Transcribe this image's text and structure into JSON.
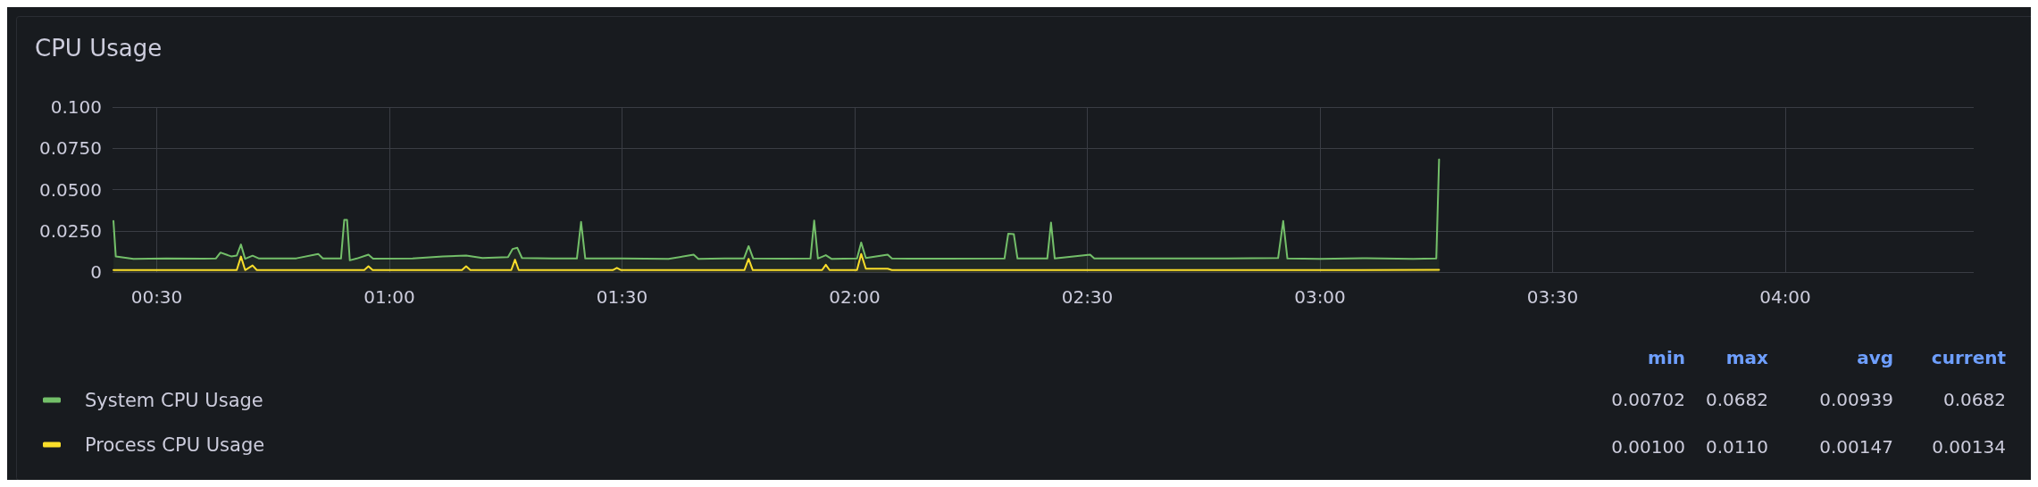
{
  "chart_data": {
    "type": "area",
    "title": "CPU Usage",
    "xlim": [
      0.405,
      4.405
    ],
    "xticks": [
      {
        "value": 0.5,
        "label": "00:30"
      },
      {
        "value": 1,
        "label": "01:00"
      },
      {
        "value": 1.5,
        "label": "01:30"
      },
      {
        "value": 2,
        "label": "02:00"
      },
      {
        "value": 2.5,
        "label": "02:30"
      },
      {
        "value": 3,
        "label": "03:00"
      },
      {
        "value": 3.5,
        "label": "03:30"
      },
      {
        "value": 4,
        "label": "04:00"
      }
    ],
    "ylim": [
      0,
      0.1
    ],
    "yticks": [
      0,
      {
        "value": 0.025,
        "label": "0.0250"
      },
      {
        "value": 0.05,
        "label": "0.0500"
      },
      {
        "value": 0.075,
        "label": "0.0750"
      },
      {
        "value": 0.1,
        "label": "0.100"
      }
    ],
    "grid": true,
    "legend": "bottom",
    "marker": "none",
    "line_style": "solid",
    "series": [
      {
        "name": "System CPU Usage",
        "color": "#73bf69",
        "x": [
          0.407,
          0.412,
          0.45,
          0.52,
          0.6,
          0.627,
          0.637,
          0.66,
          0.672,
          0.681,
          0.69,
          0.706,
          0.72,
          0.8,
          0.847,
          0.857,
          0.896,
          0.903,
          0.909,
          0.915,
          0.93,
          0.955,
          0.965,
          1.05,
          1.115,
          1.165,
          1.2,
          1.255,
          1.265,
          1.275,
          1.285,
          1.35,
          1.403,
          1.412,
          1.421,
          1.5,
          1.6,
          1.654,
          1.664,
          1.72,
          1.762,
          1.772,
          1.782,
          1.85,
          1.905,
          1.913,
          1.921,
          1.938,
          1.95,
          2.005,
          2.014,
          2.024,
          2.071,
          2.08,
          2.2,
          2.322,
          2.33,
          2.342,
          2.35,
          2.414,
          2.422,
          2.43,
          2.506,
          2.515,
          2.65,
          2.8,
          2.91,
          2.921,
          2.93,
          3.0,
          3.1,
          3.2,
          3.25,
          3.256
        ],
        "values": [
          0.0309,
          0.0095,
          0.008,
          0.0083,
          0.0081,
          0.0082,
          0.0118,
          0.0095,
          0.01,
          0.0167,
          0.008,
          0.0099,
          0.0082,
          0.0083,
          0.011,
          0.0082,
          0.0082,
          0.0316,
          0.0316,
          0.0071,
          0.0082,
          0.0105,
          0.0081,
          0.0083,
          0.0095,
          0.01,
          0.0085,
          0.009,
          0.014,
          0.0147,
          0.0085,
          0.0082,
          0.0082,
          0.0304,
          0.0082,
          0.0083,
          0.008,
          0.0105,
          0.008,
          0.0082,
          0.0082,
          0.0157,
          0.0082,
          0.0081,
          0.0082,
          0.0312,
          0.0082,
          0.0102,
          0.008,
          0.0082,
          0.0179,
          0.0085,
          0.0105,
          0.0082,
          0.0081,
          0.0082,
          0.0232,
          0.023,
          0.0082,
          0.0082,
          0.03,
          0.0082,
          0.0105,
          0.0082,
          0.0083,
          0.0082,
          0.0085,
          0.0309,
          0.0082,
          0.008,
          0.0084,
          0.008,
          0.0082,
          0.0682
        ]
      },
      {
        "name": "Process CPU Usage",
        "color": "#fade2a",
        "x": [
          0.407,
          0.6,
          0.672,
          0.681,
          0.69,
          0.706,
          0.715,
          0.946,
          0.955,
          0.964,
          1.156,
          1.165,
          1.174,
          1.262,
          1.27,
          1.278,
          1.48,
          1.489,
          1.498,
          1.763,
          1.772,
          1.781,
          1.93,
          1.938,
          1.946,
          2.005,
          2.014,
          2.024,
          2.071,
          2.08,
          2.6,
          3.0,
          3.256
        ],
        "values": [
          0.0012,
          0.0012,
          0.0012,
          0.0094,
          0.0012,
          0.004,
          0.0012,
          0.0012,
          0.0035,
          0.0012,
          0.0012,
          0.0035,
          0.0012,
          0.0012,
          0.0075,
          0.0012,
          0.0012,
          0.0025,
          0.0012,
          0.0012,
          0.008,
          0.0012,
          0.0012,
          0.0044,
          0.0012,
          0.0012,
          0.011,
          0.002,
          0.002,
          0.0012,
          0.0012,
          0.0012,
          0.00134
        ]
      }
    ],
    "annotations": [
      "min",
      "max",
      "avg",
      "current",
      "0.00702",
      "0.0682",
      "0.00939",
      "0.0682",
      "0.00100",
      "0.0110",
      "0.00147",
      "0.00134"
    ]
  }
}
